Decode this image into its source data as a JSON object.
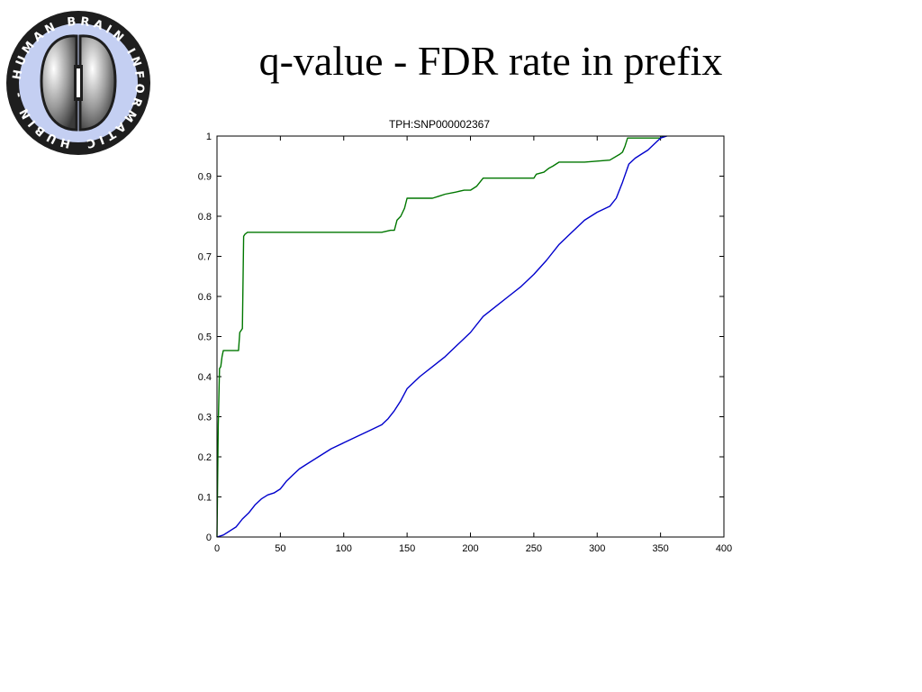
{
  "slide": {
    "title": "q-value - FDR rate in prefix"
  },
  "logo": {
    "ring_text": "HUBIN - HUMAN BRAIN INFORMATICS -"
  },
  "chart_data": {
    "type": "line",
    "title": "TPH:SNP000002367",
    "xlabel": "",
    "ylabel": "",
    "xlim": [
      0,
      400
    ],
    "ylim": [
      0,
      1
    ],
    "xticks": [
      0,
      50,
      100,
      150,
      200,
      250,
      300,
      350,
      400
    ],
    "yticks": [
      0,
      0.1,
      0.2,
      0.3,
      0.4,
      0.5,
      0.6,
      0.7,
      0.8,
      0.9,
      1
    ],
    "tick_labels_x": [
      "0",
      "50",
      "100",
      "150",
      "200",
      "250",
      "300",
      "350",
      "400"
    ],
    "tick_labels_y": [
      "0",
      "0.1",
      "0.2",
      "0.3",
      "0.4",
      "0.5",
      "0.6",
      "0.7",
      "0.8",
      "0.9",
      "1"
    ],
    "grid": false,
    "series": [
      {
        "color": "#007700",
        "x": [
          0,
          1,
          2,
          3,
          4,
          5,
          6,
          7,
          8,
          17,
          18,
          20,
          21,
          22,
          24,
          130,
          137,
          140,
          142,
          145,
          148,
          150,
          160,
          170,
          175,
          180,
          188,
          195,
          200,
          205,
          210,
          218,
          230,
          250,
          252,
          258,
          262,
          265,
          270,
          280,
          290,
          310,
          318,
          320,
          322,
          324,
          330,
          340,
          350,
          352
        ],
        "values": [
          0,
          0.28,
          0.42,
          0.425,
          0.45,
          0.465,
          0.465,
          0.465,
          0.465,
          0.465,
          0.51,
          0.52,
          0.75,
          0.755,
          0.76,
          0.76,
          0.765,
          0.765,
          0.79,
          0.8,
          0.82,
          0.845,
          0.845,
          0.845,
          0.85,
          0.855,
          0.86,
          0.865,
          0.865,
          0.875,
          0.895,
          0.895,
          0.895,
          0.895,
          0.905,
          0.91,
          0.92,
          0.925,
          0.935,
          0.935,
          0.935,
          0.94,
          0.955,
          0.96,
          0.975,
          0.995,
          0.995,
          0.995,
          0.995,
          1.0
        ]
      },
      {
        "color": "#0000cc",
        "x": [
          0,
          5,
          10,
          15,
          20,
          25,
          30,
          35,
          40,
          45,
          50,
          55,
          60,
          65,
          70,
          80,
          90,
          100,
          110,
          120,
          130,
          135,
          140,
          145,
          150,
          160,
          170,
          180,
          190,
          200,
          210,
          220,
          230,
          240,
          250,
          260,
          270,
          280,
          290,
          300,
          310,
          315,
          320,
          325,
          330,
          335,
          340,
          345,
          350,
          355
        ],
        "values": [
          0,
          0.005,
          0.015,
          0.025,
          0.045,
          0.06,
          0.08,
          0.095,
          0.105,
          0.11,
          0.12,
          0.14,
          0.155,
          0.17,
          0.18,
          0.2,
          0.22,
          0.235,
          0.25,
          0.265,
          0.28,
          0.295,
          0.315,
          0.34,
          0.37,
          0.4,
          0.425,
          0.45,
          0.48,
          0.51,
          0.55,
          0.575,
          0.6,
          0.625,
          0.655,
          0.69,
          0.73,
          0.76,
          0.79,
          0.81,
          0.825,
          0.845,
          0.885,
          0.93,
          0.945,
          0.955,
          0.965,
          0.98,
          0.995,
          1.0
        ]
      }
    ]
  }
}
